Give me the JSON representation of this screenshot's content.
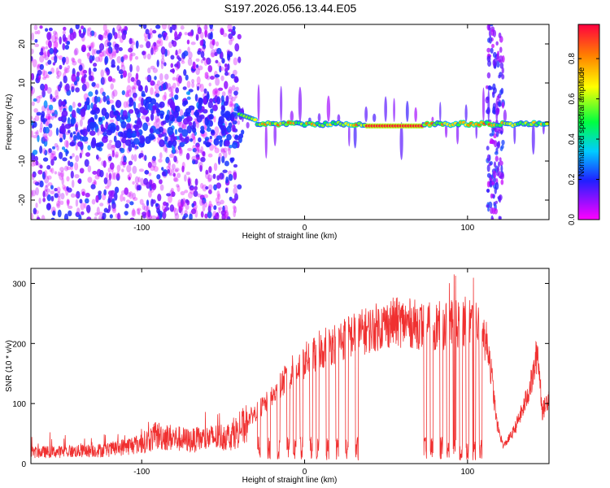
{
  "title": "S197.2026.056.13.44.E05",
  "colors": {
    "snr_line": "#f03030",
    "axis": "#000000",
    "background": "#ffffff"
  },
  "chart_data": [
    {
      "type": "heatmap",
      "name": "spectrogram",
      "xlabel": "Height of straight line (km)",
      "ylabel": "Frequency (Hz)",
      "xlim": [
        -168,
        150
      ],
      "ylim": [
        -25,
        25
      ],
      "x_ticks": [
        "-100",
        "0",
        "100"
      ],
      "x_tick_values": [
        -100,
        0,
        100
      ],
      "y_ticks": [
        "20",
        "10",
        "0",
        "-10",
        "-20"
      ],
      "y_tick_values": [
        20,
        10,
        0,
        -10,
        -20
      ],
      "colorbar": {
        "label": "Normalized spectral amplitude",
        "ticks": [
          "0.0",
          "0.2",
          "0.4",
          "0.6",
          "0.8"
        ],
        "tick_values": [
          0.0,
          0.2,
          0.4,
          0.6,
          0.8
        ],
        "range": [
          0,
          0.97
        ],
        "colormap": "rainbow (magenta-blue-cyan-green-yellow-red)"
      },
      "features": [
        {
          "description": "broadband noise speckle",
          "x_range": [
            -168,
            -40
          ],
          "freq_range": [
            -25,
            25
          ],
          "amplitude": 0.15
        },
        {
          "description": "central line near 0 Hz",
          "x_range": [
            -40,
            150
          ],
          "freq_center": -0.5,
          "amplitude": 0.9
        },
        {
          "description": "strongest line segment",
          "x_range": [
            38,
            73
          ],
          "freq_center": -1,
          "amplitude": 0.97
        },
        {
          "description": "vertical noise band",
          "x_range": [
            112,
            122
          ],
          "freq_range": [
            -25,
            25
          ],
          "amplitude": 0.2
        }
      ]
    },
    {
      "type": "line",
      "name": "snr",
      "xlabel": "Height of straight line (km)",
      "ylabel": "SNR (10 * v/v)",
      "xlim": [
        -168,
        150
      ],
      "ylim": [
        0,
        325
      ],
      "x_ticks": [
        "-100",
        "0",
        "100"
      ],
      "x_tick_values": [
        -100,
        0,
        100
      ],
      "y_ticks": [
        "0",
        "100",
        "200",
        "300"
      ],
      "y_tick_values": [
        0,
        100,
        200,
        300
      ],
      "series": [
        {
          "name": "SNR",
          "envelope_x": [
            -168,
            -140,
            -120,
            -100,
            -90,
            -70,
            -45,
            -30,
            -20,
            -10,
            0,
            10,
            20,
            30,
            40,
            45,
            55,
            65,
            75,
            85,
            95,
            100,
            108,
            113,
            118,
            122,
            128,
            134,
            140,
            143,
            146,
            150
          ],
          "envelope_y": [
            22,
            24,
            27,
            40,
            55,
            45,
            55,
            90,
            115,
            155,
            180,
            200,
            215,
            225,
            235,
            240,
            248,
            246,
            240,
            242,
            245,
            250,
            240,
            200,
            70,
            30,
            55,
            95,
            150,
            200,
            90,
            120
          ],
          "dropouts_x": [
            -28,
            -22,
            -16,
            -10,
            -6,
            -2,
            4,
            8,
            14,
            20,
            26,
            32,
            74,
            78,
            84,
            88,
            92,
            96,
            100,
            104,
            108
          ]
        }
      ]
    }
  ]
}
